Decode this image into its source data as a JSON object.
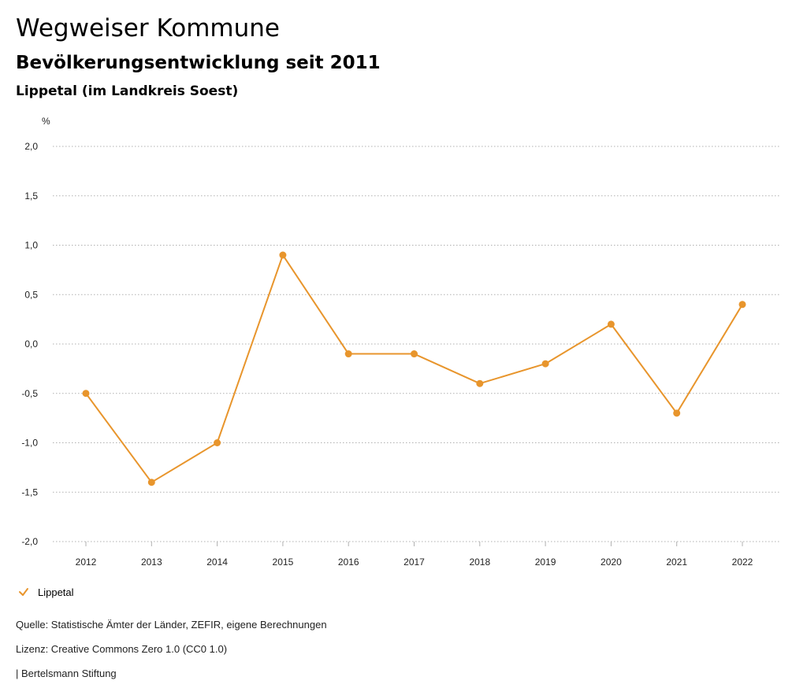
{
  "header": {
    "title": "Wegweiser Kommune",
    "subtitle": "Bevölkerungsentwicklung seit 2011",
    "region": "Lippetal (im Landkreis Soest)"
  },
  "chart_data": {
    "type": "line",
    "x": [
      "2012",
      "2013",
      "2014",
      "2015",
      "2016",
      "2017",
      "2018",
      "2019",
      "2020",
      "2021",
      "2022"
    ],
    "series": [
      {
        "name": "Lippetal",
        "color": "#e8952c",
        "values": [
          -0.5,
          -1.4,
          -1.0,
          0.9,
          -0.1,
          -0.1,
          -0.4,
          -0.2,
          0.2,
          -0.7,
          0.4
        ]
      }
    ],
    "yunit": "%",
    "ylim": [
      -2.0,
      2.0
    ],
    "yticks": [
      2.0,
      1.5,
      1.0,
      0.5,
      0.0,
      -0.5,
      -1.0,
      -1.5,
      -2.0
    ],
    "ytick_labels": [
      "2,0",
      "1,5",
      "1,0",
      "0,5",
      "0,0",
      "-0,5",
      "-1,0",
      "-1,5",
      "-2,0"
    ],
    "grid": true,
    "grid_style": "dotted",
    "legend_position": "bottom-left"
  },
  "footer": {
    "source": "Quelle: Statistische Ämter der Länder, ZEFIR, eigene Berechnungen",
    "license": "Lizenz: Creative Commons Zero 1.0 (CC0 1.0)",
    "publisher": "| Bertelsmann Stiftung"
  },
  "legend_icon": "checkmark-icon"
}
